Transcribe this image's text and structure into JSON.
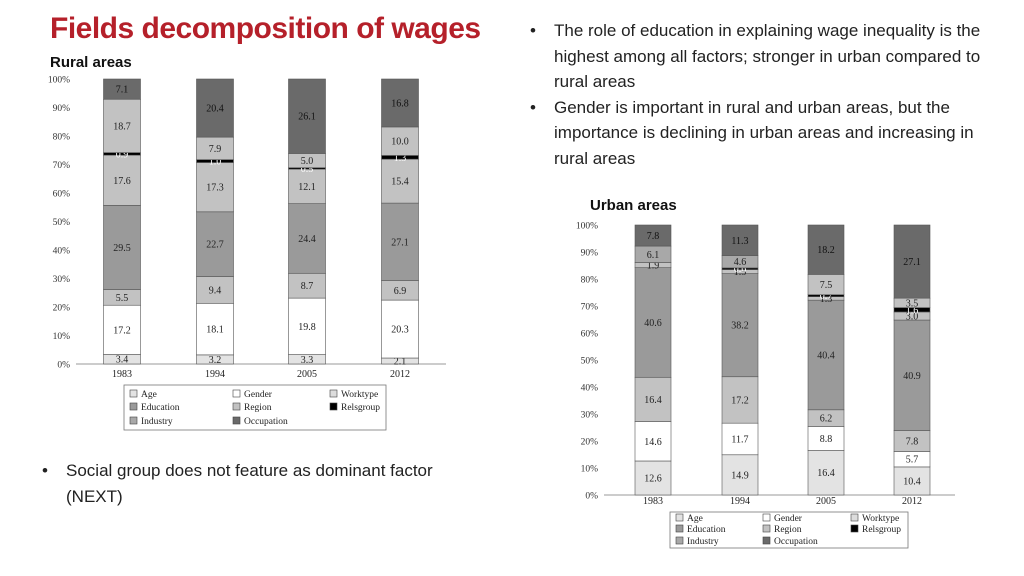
{
  "title": "Fields decomposition of wages",
  "rural_label": "Rural areas",
  "urban_label": "Urban areas",
  "right_bullets": [
    "The role of education in explaining wage inequality is the highest among all factors; stronger in urban compared to rural areas",
    "Gender is important in rural and urban areas, but the importance is declining in urban areas and increasing in rural areas"
  ],
  "left_bullets": [
    "Social group does not feature as dominant factor (NEXT)"
  ],
  "colors": {
    "Age": "#e3e3e3",
    "Gender": "#ffffff",
    "Worktype": "#dcdcdc",
    "Education": "#9a9a9a",
    "Region": "#c2c2c2",
    "Relsgroup": "#000000",
    "Industry": "#a8a8a8",
    "Occupation": "#6a6a6a"
  },
  "chart_data": [
    {
      "type": "bar",
      "stacked": true,
      "id": "rural",
      "categories": [
        "1983",
        "1994",
        "2005",
        "2012"
      ],
      "ylim": [
        0,
        100
      ],
      "yticks": [
        "0%",
        "10%",
        "20%",
        "30%",
        "40%",
        "50%",
        "60%",
        "70%",
        "80%",
        "90%",
        "100%"
      ],
      "legend": [
        [
          "Age",
          "Gender",
          "Worktype"
        ],
        [
          "Education",
          "Region",
          "Relsgroup"
        ],
        [
          "Industry",
          "Occupation"
        ]
      ],
      "bars": [
        [
          {
            "factor": "Age",
            "value": 3.4,
            "label": "3.4"
          },
          {
            "factor": "Gender",
            "value": 17.2,
            "label": "17.2"
          },
          {
            "factor": "Region",
            "value": 5.5,
            "label": "5.5"
          },
          {
            "factor": "Education",
            "value": 29.5,
            "label": "29.5"
          },
          {
            "factor": "Region",
            "value": 17.6,
            "label": "17.6"
          },
          {
            "factor": "Relsgroup",
            "value": 0.9,
            "label": "0.9"
          },
          {
            "factor": "Region",
            "value": 18.7,
            "label": "18.7"
          },
          {
            "factor": "Occupation",
            "value": 7.1,
            "label": "7.1"
          }
        ],
        [
          {
            "factor": "Age",
            "value": 3.2,
            "label": "3.2"
          },
          {
            "factor": "Gender",
            "value": 18.1,
            "label": "18.1"
          },
          {
            "factor": "Region",
            "value": 9.4,
            "label": "9.4"
          },
          {
            "factor": "Education",
            "value": 22.7,
            "label": "22.7"
          },
          {
            "factor": "Region",
            "value": 17.3,
            "label": "17.3"
          },
          {
            "factor": "Relsgroup",
            "value": 1.0,
            "label": "1.0"
          },
          {
            "factor": "Region",
            "value": 7.9,
            "label": "7.9"
          },
          {
            "factor": "Occupation",
            "value": 20.4,
            "label": "20.4"
          }
        ],
        [
          {
            "factor": "Age",
            "value": 3.3,
            "label": "3.3"
          },
          {
            "factor": "Gender",
            "value": 19.8,
            "label": "19.8"
          },
          {
            "factor": "Region",
            "value": 8.7,
            "label": "8.7"
          },
          {
            "factor": "Education",
            "value": 24.4,
            "label": "24.4"
          },
          {
            "factor": "Region",
            "value": 12.1,
            "label": "12.1"
          },
          {
            "factor": "Relsgroup",
            "value": 0.5,
            "label": "0.5"
          },
          {
            "factor": "Region",
            "value": 5.0,
            "label": "5.0"
          },
          {
            "factor": "Occupation",
            "value": 26.1,
            "label": "26.1"
          }
        ],
        [
          {
            "factor": "Age",
            "value": 2.1,
            "label": "2.1"
          },
          {
            "factor": "Gender",
            "value": 20.3,
            "label": "20.3"
          },
          {
            "factor": "Region",
            "value": 6.9,
            "label": "6.9"
          },
          {
            "factor": "Education",
            "value": 27.1,
            "label": "27.1"
          },
          {
            "factor": "Region",
            "value": 15.4,
            "label": "15.4"
          },
          {
            "factor": "Relsgroup",
            "value": 1.3,
            "label": "1.3"
          },
          {
            "factor": "Region",
            "value": 10.0,
            "label": "10.0"
          },
          {
            "factor": "Occupation",
            "value": 16.8,
            "label": "16.8"
          }
        ]
      ]
    },
    {
      "type": "bar",
      "stacked": true,
      "id": "urban",
      "categories": [
        "1983",
        "1994",
        "2005",
        "2012"
      ],
      "ylim": [
        0,
        100
      ],
      "yticks": [
        "0%",
        "10%",
        "20%",
        "30%",
        "40%",
        "50%",
        "60%",
        "70%",
        "80%",
        "90%",
        "100%"
      ],
      "legend": [
        [
          "Age",
          "Gender",
          "Worktype"
        ],
        [
          "Education",
          "Region",
          "Relsgroup"
        ],
        [
          "Industry",
          "Occupation"
        ]
      ],
      "bars": [
        [
          {
            "factor": "Age",
            "value": 12.6,
            "label": "12.6"
          },
          {
            "factor": "Gender",
            "value": 14.6,
            "label": "14.6"
          },
          {
            "factor": "Region",
            "value": 16.4,
            "label": "16.4"
          },
          {
            "factor": "Education",
            "value": 40.6,
            "label": "40.6"
          },
          {
            "factor": "Region",
            "value": 1.9,
            "label": "1.9"
          },
          {
            "factor": "Industry",
            "value": 6.1,
            "label": "6.1"
          },
          {
            "factor": "Occupation",
            "value": 7.8,
            "label": "7.8"
          }
        ],
        [
          {
            "factor": "Age",
            "value": 14.9,
            "label": "14.9"
          },
          {
            "factor": "Gender",
            "value": 11.7,
            "label": "11.7"
          },
          {
            "factor": "Region",
            "value": 17.2,
            "label": "17.2"
          },
          {
            "factor": "Education",
            "value": 38.2,
            "label": "38.2"
          },
          {
            "factor": "Region",
            "value": 1.5,
            "label": "1.5"
          },
          {
            "factor": "Relsgroup",
            "value": 0.6,
            "label": "0.6"
          },
          {
            "factor": "Industry",
            "value": 4.6,
            "label": "4.6"
          },
          {
            "factor": "Occupation",
            "value": 11.3,
            "label": "11.3"
          }
        ],
        [
          {
            "factor": "Age",
            "value": 16.4,
            "label": "16.4"
          },
          {
            "factor": "Gender",
            "value": 8.8,
            "label": "8.8"
          },
          {
            "factor": "Region",
            "value": 6.2,
            "label": "6.2"
          },
          {
            "factor": "Education",
            "value": 40.4,
            "label": "40.4"
          },
          {
            "factor": "Region",
            "value": 1.3,
            "label": "1.3"
          },
          {
            "factor": "Relsgroup",
            "value": 0.7,
            "label": "0.7"
          },
          {
            "factor": "Region",
            "value": 7.5,
            "label": "7.5"
          },
          {
            "factor": "Occupation",
            "value": 18.2,
            "label": "18.2"
          }
        ],
        [
          {
            "factor": "Age",
            "value": 10.4,
            "label": "10.4"
          },
          {
            "factor": "Gender",
            "value": 5.7,
            "label": "5.7"
          },
          {
            "factor": "Region",
            "value": 7.8,
            "label": "7.8"
          },
          {
            "factor": "Education",
            "value": 40.9,
            "label": "40.9"
          },
          {
            "factor": "Region",
            "value": 3.0,
            "label": "3.0"
          },
          {
            "factor": "Relsgroup",
            "value": 1.6,
            "label": "1.6"
          },
          {
            "factor": "Region",
            "value": 3.5,
            "label": "3.5"
          },
          {
            "factor": "Occupation",
            "value": 27.1,
            "label": "27.1"
          }
        ]
      ]
    }
  ]
}
